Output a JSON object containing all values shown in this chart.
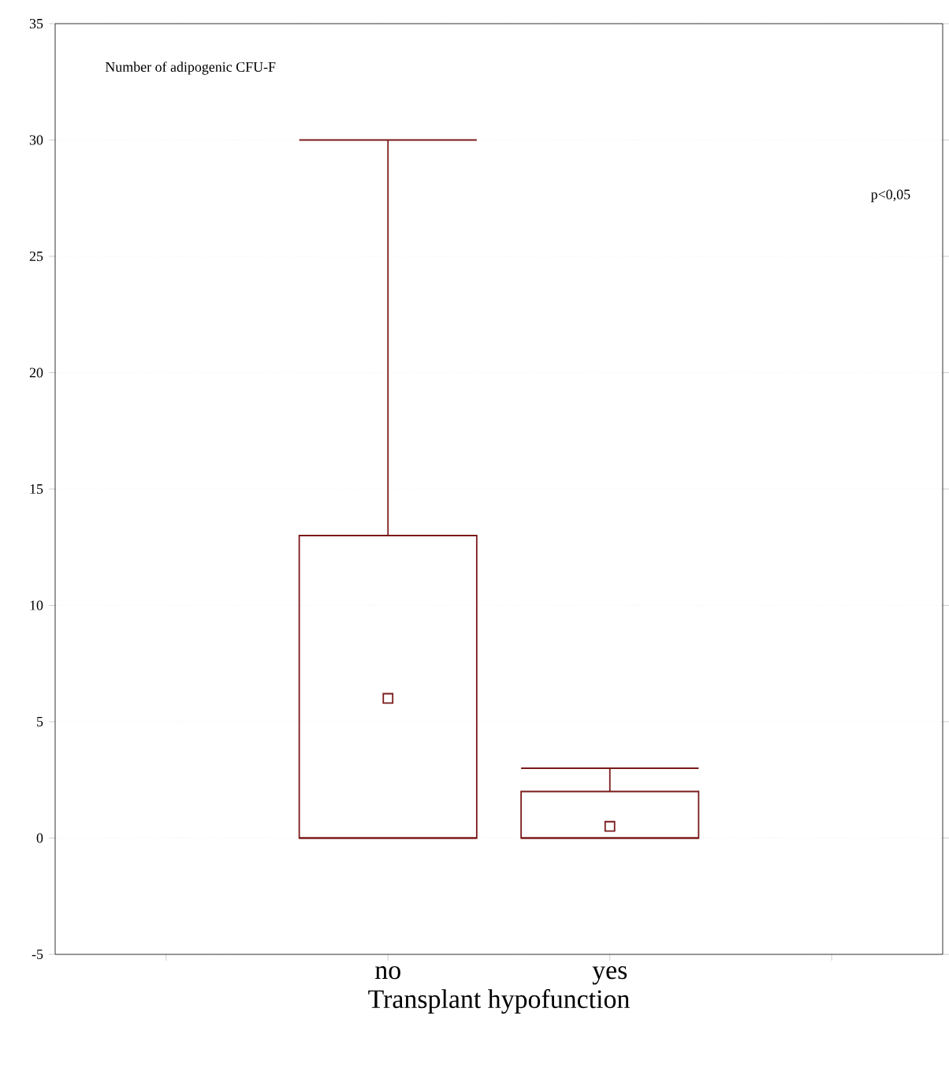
{
  "chart_data": {
    "type": "box",
    "title": "Number of adipogenic CFU-F",
    "xlabel": "Transplant hypofunction",
    "categories": [
      "no",
      "yes"
    ],
    "boxes": [
      {
        "low": 0,
        "q1": 0,
        "median": 6,
        "q3": 13,
        "high": 30
      },
      {
        "low": 0,
        "q1": 0,
        "median": 0.5,
        "q3": 2,
        "high": 3
      }
    ],
    "color": "#7b1a1a",
    "marker": "square",
    "ylim": [
      -5,
      35
    ],
    "yticks": [
      -5,
      0,
      5,
      10,
      15,
      20,
      25,
      30,
      35
    ],
    "grid": "y",
    "annotations": [
      "p<0,05"
    ]
  }
}
